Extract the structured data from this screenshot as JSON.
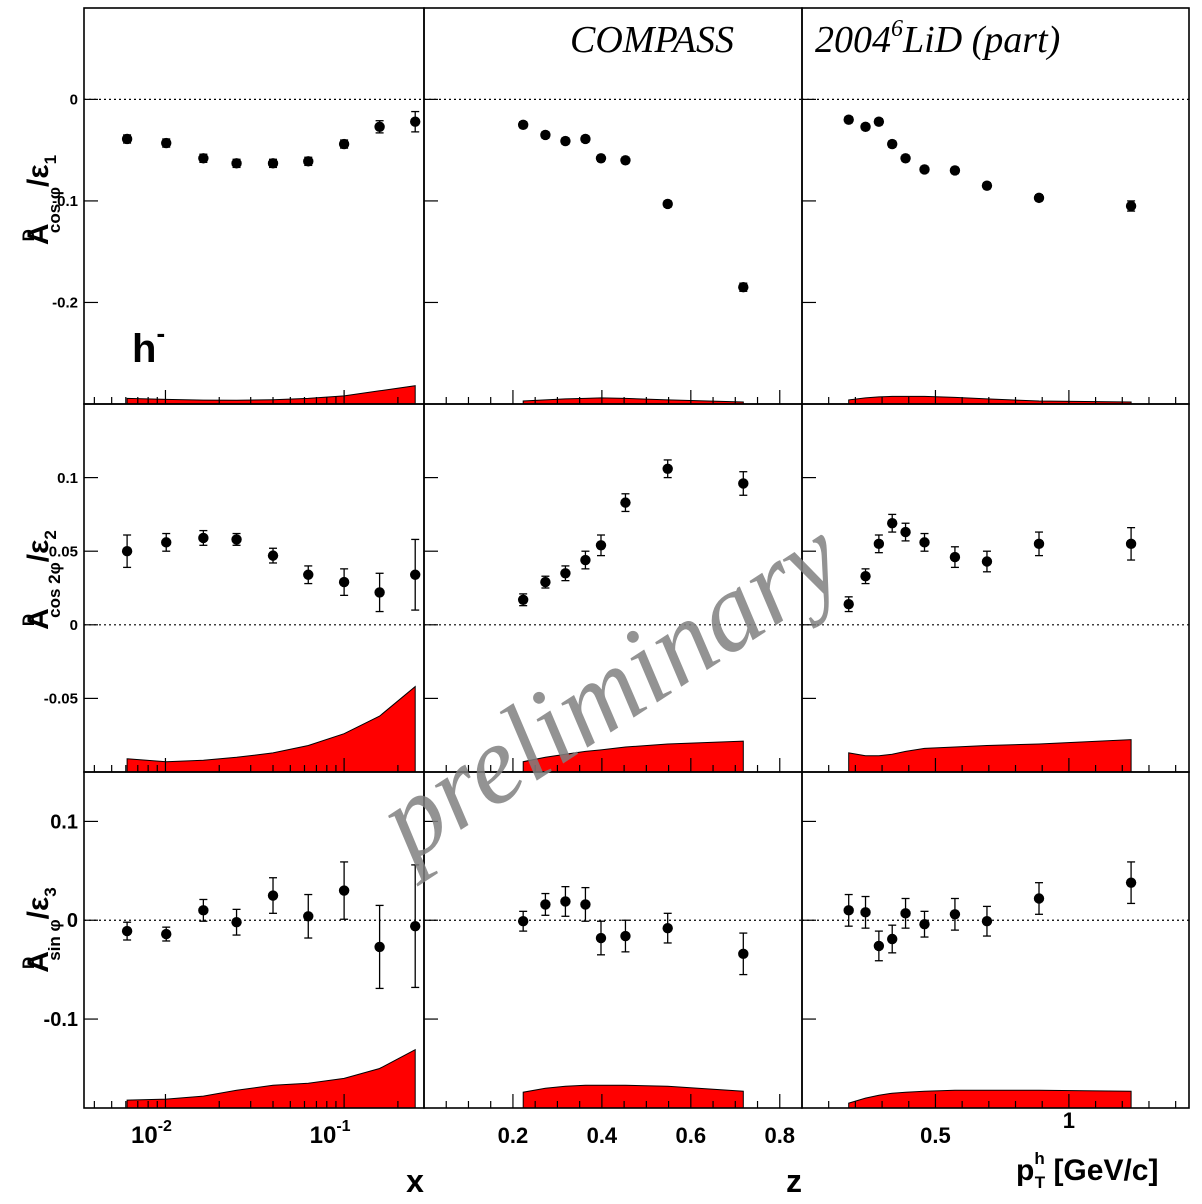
{
  "annotations": {
    "experiment": "COMPASS",
    "dataset_prefix": "2004",
    "dataset_super": "6",
    "dataset_suffix": "LiD (part)",
    "hadron": "h",
    "hadron_charge": "-",
    "watermark": "preliminary"
  },
  "colors": {
    "band": "#ff0000",
    "text_blue": "#0000ff",
    "watermark": "#808080",
    "points": "#000000"
  },
  "rows": [
    {
      "base": "A",
      "sup": "D",
      "sub": "cos φ",
      "tail": "/ε",
      "tail_sub": "1"
    },
    {
      "base": "A",
      "sup": "D",
      "sub": "cos 2φ",
      "tail": "/ε",
      "tail_sub": "2"
    },
    {
      "base": "A",
      "sup": "D",
      "sub": "sin φ",
      "tail": "/ε",
      "tail_sub": "3"
    }
  ],
  "columns": [
    {
      "xlabel": "x",
      "tick_labels": [
        {
          "base": "10",
          "exp": "-2"
        },
        {
          "base": "10",
          "exp": "-1"
        }
      ]
    },
    {
      "xlabel": "z",
      "tick_labels": [
        "0.2",
        "0.4",
        "0.6",
        "0.8"
      ]
    },
    {
      "xlabel": "p",
      "xlabel_sub": "T",
      "xlabel_sup": "h",
      "xlabel_unit": "[GeV/c]",
      "tick_labels": [
        "0.5",
        "1"
      ]
    }
  ],
  "chart_data": {
    "type": "scatter",
    "grid": false,
    "layout": "3x3 panels, shared y per row, shared x per column",
    "columns": [
      {
        "name": "x",
        "scale": "log",
        "xlim": [
          0.0035,
          0.28
        ],
        "ticks": [
          0.01,
          0.1
        ]
      },
      {
        "name": "z",
        "scale": "linear",
        "xlim": [
          0.0,
          0.85
        ],
        "ticks": [
          0.2,
          0.4,
          0.6,
          0.8
        ]
      },
      {
        "name": "pT",
        "scale": "linear",
        "xlim": [
          0.0,
          1.45
        ],
        "ticks": [
          0.5,
          1.0
        ]
      }
    ],
    "rows": [
      {
        "name": "cos_phi",
        "ylim": [
          -0.3,
          0.09
        ],
        "ticks": [
          0,
          -0.1,
          -0.2
        ]
      },
      {
        "name": "cos_2phi",
        "ylim": [
          -0.1,
          0.15
        ],
        "ticks": [
          0.1,
          0.05,
          0,
          -0.05
        ]
      },
      {
        "name": "sin_phi",
        "ylim": [
          -0.19,
          0.15
        ],
        "ticks": [
          0.1,
          0,
          -0.1
        ]
      }
    ],
    "x_points": [
      [
        0.0061,
        0.0101,
        0.0163,
        0.025,
        0.04,
        0.063,
        0.1,
        0.158,
        0.25
      ],
      [
        0.223,
        0.273,
        0.318,
        0.363,
        0.398,
        0.453,
        0.548,
        0.718
      ],
      [
        0.175,
        0.238,
        0.288,
        0.338,
        0.388,
        0.459,
        0.573,
        0.693,
        0.888,
        1.233
      ]
    ],
    "y_values": {
      "cos_phi": [
        [
          -0.039,
          -0.043,
          -0.058,
          -0.063,
          -0.063,
          -0.061,
          -0.044,
          -0.027,
          -0.022
        ],
        [
          -0.025,
          -0.035,
          -0.041,
          -0.039,
          -0.058,
          -0.06,
          -0.103,
          -0.185
        ],
        [
          -0.02,
          -0.027,
          -0.022,
          -0.044,
          -0.058,
          -0.069,
          -0.07,
          -0.085,
          -0.097,
          -0.105
        ]
      ],
      "cos_2phi": [
        [
          0.05,
          0.056,
          0.059,
          0.058,
          0.047,
          0.034,
          0.029,
          0.022,
          0.034
        ],
        [
          0.017,
          0.029,
          0.035,
          0.044,
          0.054,
          0.083,
          0.106,
          0.096
        ],
        [
          0.014,
          0.033,
          0.055,
          0.069,
          0.063,
          0.056,
          0.046,
          0.043,
          0.055,
          0.055
        ]
      ],
      "sin_phi": [
        [
          -0.011,
          -0.014,
          0.01,
          -0.002,
          0.025,
          0.004,
          0.03,
          -0.027,
          -0.006
        ],
        [
          -0.001,
          0.016,
          0.019,
          0.016,
          -0.018,
          -0.016,
          -0.008,
          -0.034
        ],
        [
          0.01,
          0.008,
          -0.026,
          -0.019,
          0.007,
          -0.004,
          0.006,
          -0.001,
          0.022,
          0.038
        ]
      ]
    },
    "y_errors": {
      "cos_phi": [
        [
          0.004,
          0.004,
          0.004,
          0.004,
          0.004,
          0.004,
          0.004,
          0.006,
          0.01
        ],
        [
          0.003,
          0.003,
          0.003,
          0.003,
          0.003,
          0.003,
          0.003,
          0.004
        ],
        [
          0.003,
          0.003,
          0.003,
          0.003,
          0.003,
          0.003,
          0.003,
          0.003,
          0.003,
          0.005
        ]
      ],
      "cos_2phi": [
        [
          0.011,
          0.006,
          0.005,
          0.004,
          0.005,
          0.006,
          0.009,
          0.013,
          0.024
        ],
        [
          0.004,
          0.004,
          0.005,
          0.006,
          0.007,
          0.006,
          0.006,
          0.008
        ],
        [
          0.005,
          0.005,
          0.006,
          0.006,
          0.006,
          0.006,
          0.007,
          0.007,
          0.008,
          0.011
        ]
      ],
      "sin_phi": [
        [
          0.009,
          0.007,
          0.011,
          0.013,
          0.018,
          0.022,
          0.029,
          0.042,
          0.062
        ],
        [
          0.01,
          0.011,
          0.015,
          0.017,
          0.017,
          0.016,
          0.015,
          0.021
        ],
        [
          0.016,
          0.016,
          0.015,
          0.014,
          0.015,
          0.013,
          0.016,
          0.015,
          0.016,
          0.021
        ]
      ]
    },
    "systematic_bands": {
      "cos_phi": [
        [
          0.0055,
          0.0045,
          0.0038,
          0.0036,
          0.0042,
          0.0055,
          0.008,
          0.013,
          0.018
        ],
        [
          0.003,
          0.004,
          0.005,
          0.0055,
          0.006,
          0.0055,
          0.004,
          0.002
        ],
        [
          0.004,
          0.006,
          0.007,
          0.0075,
          0.0075,
          0.0075,
          0.0065,
          0.005,
          0.003,
          0.002
        ]
      ],
      "cos_2phi": [
        [
          0.009,
          0.007,
          0.008,
          0.01,
          0.013,
          0.018,
          0.026,
          0.038,
          0.058
        ],
        [
          0.007,
          0.01,
          0.012,
          0.014,
          0.015,
          0.017,
          0.019,
          0.021
        ],
        [
          0.013,
          0.011,
          0.011,
          0.012,
          0.014,
          0.016,
          0.017,
          0.018,
          0.019,
          0.022
        ]
      ],
      "sin_phi": [
        [
          0.008,
          0.009,
          0.012,
          0.018,
          0.023,
          0.025,
          0.03,
          0.04,
          0.059
        ],
        [
          0.016,
          0.02,
          0.022,
          0.023,
          0.023,
          0.023,
          0.022,
          0.017
        ],
        [
          0.005,
          0.01,
          0.013,
          0.015,
          0.016,
          0.017,
          0.018,
          0.018,
          0.018,
          0.017
        ]
      ]
    }
  }
}
